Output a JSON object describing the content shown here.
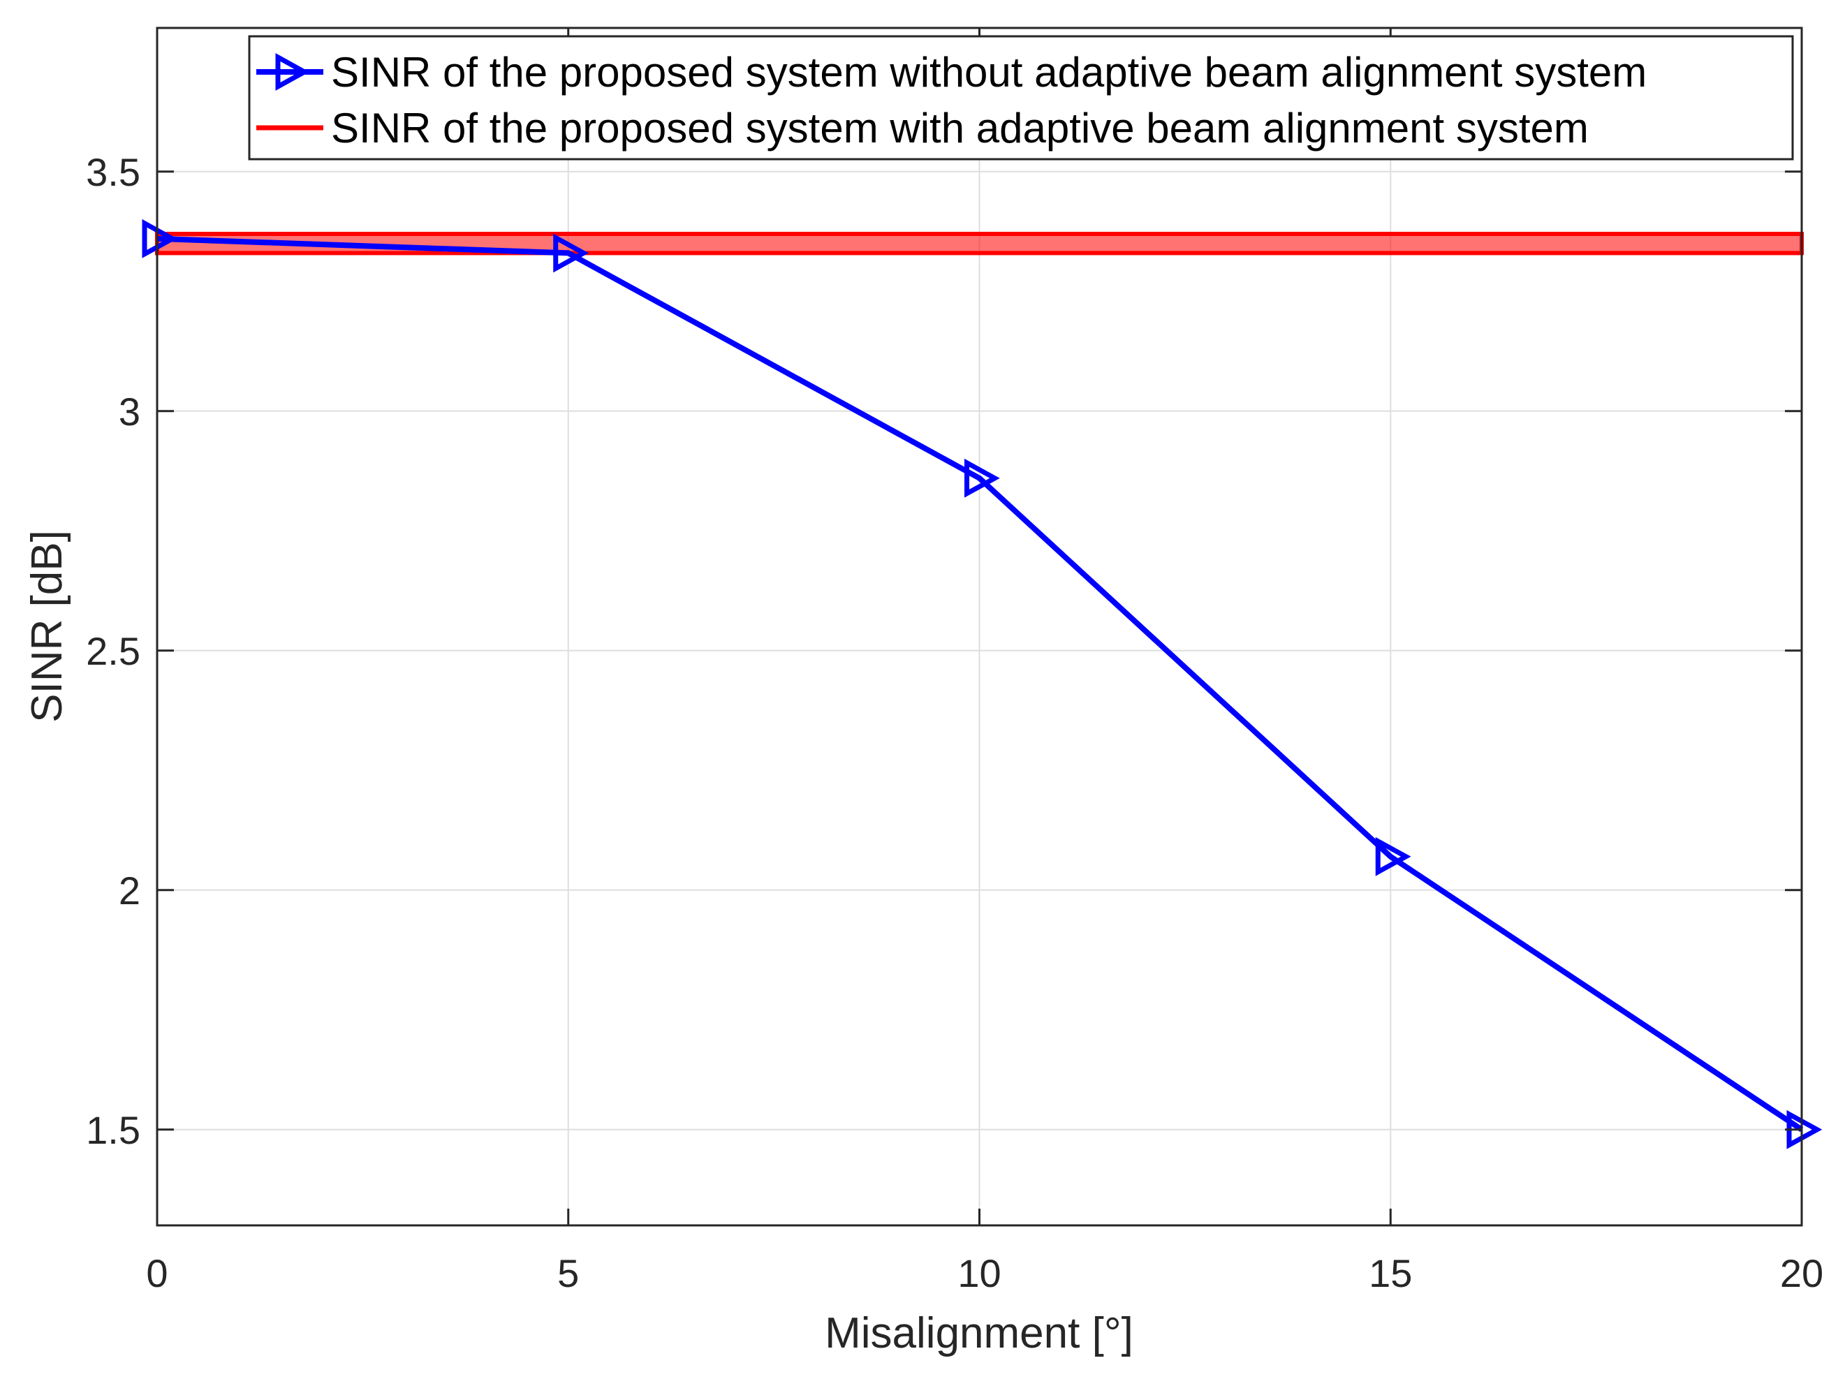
{
  "chart_data": {
    "type": "line",
    "xlabel": "Misalignment [°]",
    "ylabel": "SINR [dB]",
    "xlim": [
      0,
      20
    ],
    "ylim": [
      1.3,
      3.8
    ],
    "xticks": [
      0,
      5,
      10,
      15,
      20
    ],
    "yticks": [
      1.5,
      2,
      2.5,
      3,
      3.5
    ],
    "xtick_labels": [
      "0",
      "5",
      "10",
      "15",
      "20"
    ],
    "ytick_labels": [
      "1.5",
      "2",
      "2.5",
      "3",
      "3.5"
    ],
    "grid": true,
    "legend_position": "top-right",
    "series": [
      {
        "name": "SINR of the proposed system without adaptive beam alignment system",
        "color": "#0000ff",
        "marker": "triangle-right",
        "x": [
          0,
          5,
          10,
          15,
          20
        ],
        "y": [
          3.36,
          3.33,
          2.86,
          2.07,
          1.5
        ]
      },
      {
        "name": "SINR of the proposed system with adaptive beam alignment system",
        "color": "#ff0000",
        "style": "band",
        "x": [
          0,
          20
        ],
        "y_low": 3.33,
        "y_high": 3.37
      }
    ]
  }
}
